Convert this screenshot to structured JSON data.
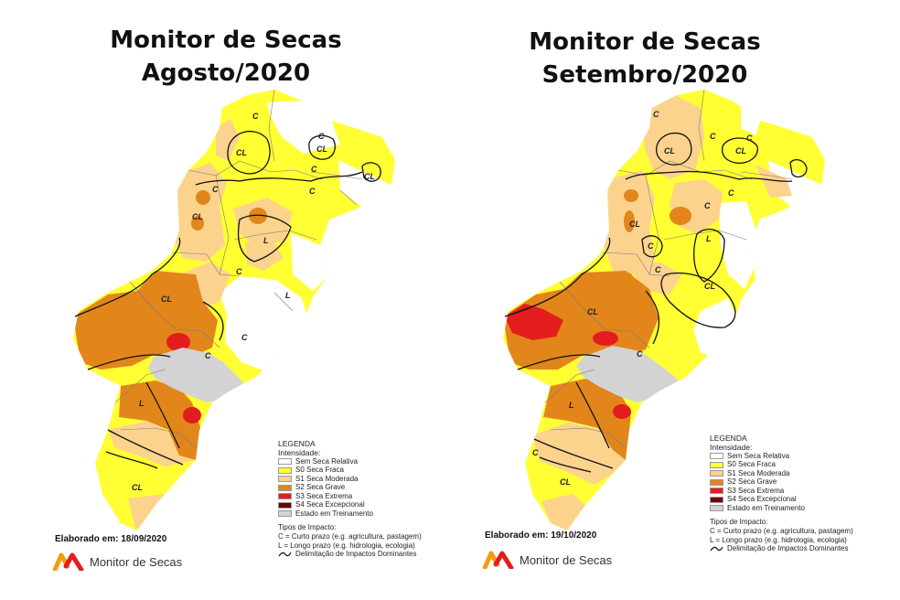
{
  "colors": {
    "none": "#ffffff",
    "s0": "#ffff33",
    "s1": "#fcd38d",
    "s2": "#e2861b",
    "s3": "#e31d1d",
    "s4": "#730000",
    "training": "#d3d3d3",
    "brand_orange": "#f39c12",
    "brand_red": "#e31d1d"
  },
  "maps": [
    {
      "title_line1": "Monitor de Secas",
      "title_line2": "Agosto/2020",
      "credit": "Elaborado em: 18/09/2020",
      "brand": "Monitor de Secas",
      "legend": {
        "heading": "LEGENDA",
        "sub": "Intensidade:",
        "items": [
          "Sem Seca Relativa",
          "S0 Seca Fraca",
          "S1 Seca Moderada",
          "S2 Seca Grave",
          "S3 Seca Extrema",
          "S4 Seca Excepcional",
          "Estado em Treinamento"
        ],
        "impact_heading": "Tipos de Impacto:",
        "impact_c": "C = Curto prazo (e.g. agricultura, pastagem)",
        "impact_l": "L = Longo prazo (e.g. hidrologia, ecologia)",
        "impact_line": "Delimitação de Impactos Dominantes"
      },
      "labels": [
        "C",
        "CL",
        "C",
        "CL",
        "C",
        "CL",
        "C",
        "CL",
        "L",
        "C",
        "CL",
        "C",
        "L",
        "C",
        "L",
        "C",
        "CL"
      ]
    },
    {
      "title_line1": "Monitor de Secas",
      "title_line2": "Setembro/2020",
      "credit": "Elaborado em: 19/10/2020",
      "brand": "Monitor de Secas",
      "legend": {
        "heading": "LEGENDA",
        "sub": "Intensidade:",
        "items": [
          "Sem Seca Relativa",
          "S0 Seca Fraca",
          "S1 Seca Moderada",
          "S2 Seca Grave",
          "S3 Seca Extrema",
          "S4 Seca Excepcional",
          "Estado em Treinamento"
        ],
        "impact_heading": "Tipos de Impacto:",
        "impact_c": "C = Curto prazo (e.g. agricultura, pastagem)",
        "impact_l": "L = Longo prazo (e.g. hidrologia, ecologia)",
        "impact_line": "Delimitação de Impactos Dominantes"
      },
      "labels": [
        "C",
        "CL",
        "C",
        "C",
        "CL",
        "C",
        "C",
        "CL",
        "C",
        "L",
        "C",
        "CL",
        "CL",
        "C",
        "L",
        "C",
        "CL"
      ]
    }
  ]
}
